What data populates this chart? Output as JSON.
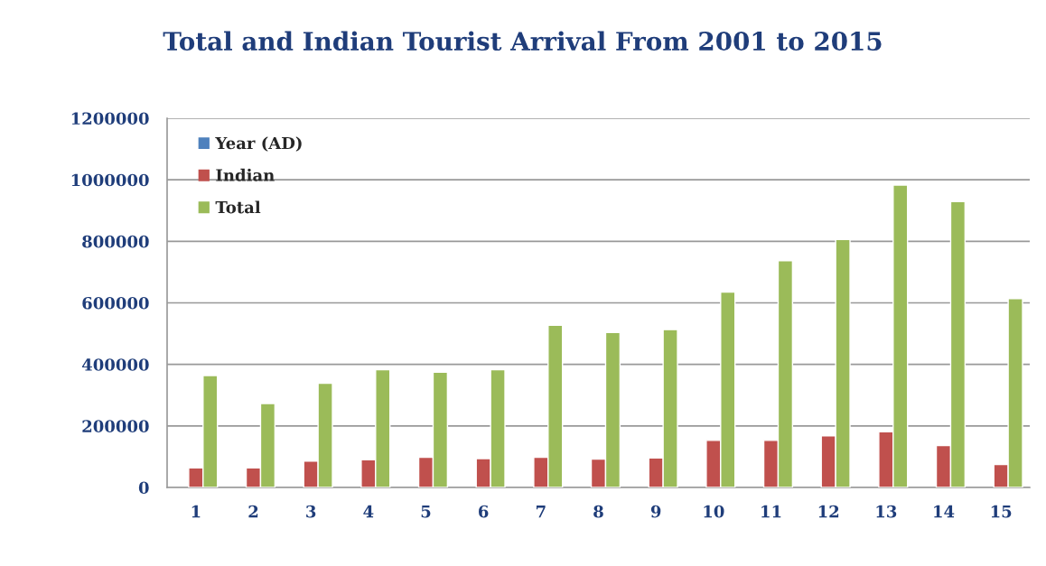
{
  "chart_data": {
    "type": "bar",
    "title": "Total and Indian Tourist Arrival From 2001 to 2015",
    "categories": [
      "1",
      "2",
      "3",
      "4",
      "5",
      "6",
      "7",
      "8",
      "9",
      "10",
      "11",
      "12",
      "13",
      "14",
      "15"
    ],
    "series": [
      {
        "name": "Year (AD)",
        "color": "#4f81bd",
        "values": [
          null,
          null,
          null,
          null,
          null,
          null,
          null,
          null,
          null,
          null,
          null,
          null,
          null,
          null,
          null
        ]
      },
      {
        "name": "Indian",
        "color": "#c0504d",
        "values": [
          64000,
          64000,
          86000,
          90000,
          98000,
          94000,
          98000,
          92000,
          96000,
          153000,
          153000,
          168000,
          181000,
          136000,
          75000
        ]
      },
      {
        "name": "Total",
        "color": "#9bbb59",
        "values": [
          364000,
          273000,
          339000,
          383000,
          375000,
          383000,
          527000,
          504000,
          513000,
          635000,
          737000,
          806000,
          983000,
          929000,
          614000
        ]
      }
    ],
    "ylim": [
      0,
      1200000
    ],
    "yticks": [
      0,
      200000,
      400000,
      600000,
      800000,
      1000000,
      1200000
    ],
    "grid": "y",
    "legend": "top left"
  }
}
